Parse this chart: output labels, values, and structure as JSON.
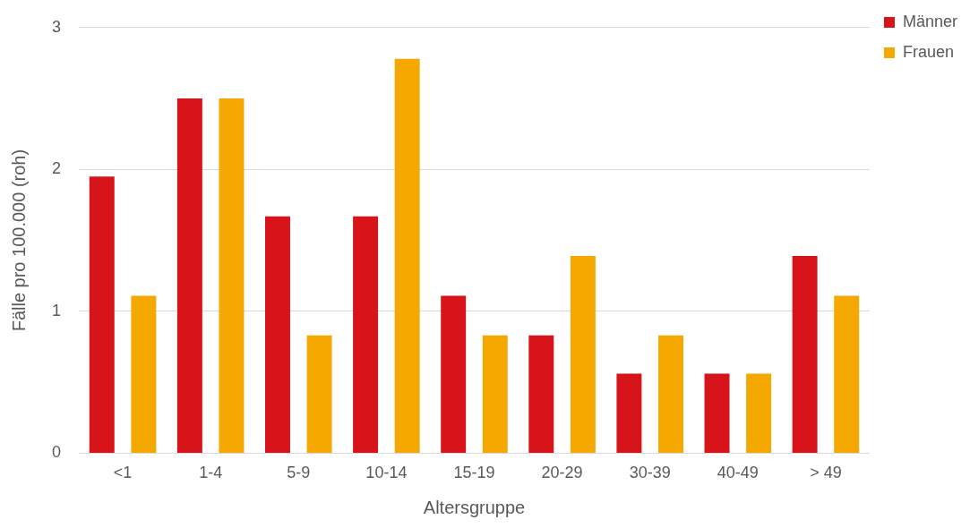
{
  "chart_data": {
    "type": "bar",
    "xlabel": "Altersgruppe",
    "ylabel": "Fälle pro 100.000 (roh)",
    "categories": [
      "<1",
      "1-4",
      "5-9",
      "10-14",
      "15-19",
      "20-29",
      "30-39",
      "40-49",
      "> 49"
    ],
    "series": [
      {
        "name": "Männer",
        "color": "#d7141a",
        "values": [
          1.95,
          2.5,
          1.67,
          1.67,
          1.11,
          0.83,
          0.56,
          0.56,
          1.39
        ]
      },
      {
        "name": "Frauen",
        "color": "#f5a800",
        "values": [
          1.11,
          2.5,
          0.83,
          2.78,
          0.83,
          1.39,
          0.83,
          0.56,
          1.11
        ]
      }
    ],
    "ylim": [
      0,
      3
    ],
    "yticks": [
      0,
      1,
      2,
      3
    ],
    "grid": "y",
    "legend": "top right"
  }
}
